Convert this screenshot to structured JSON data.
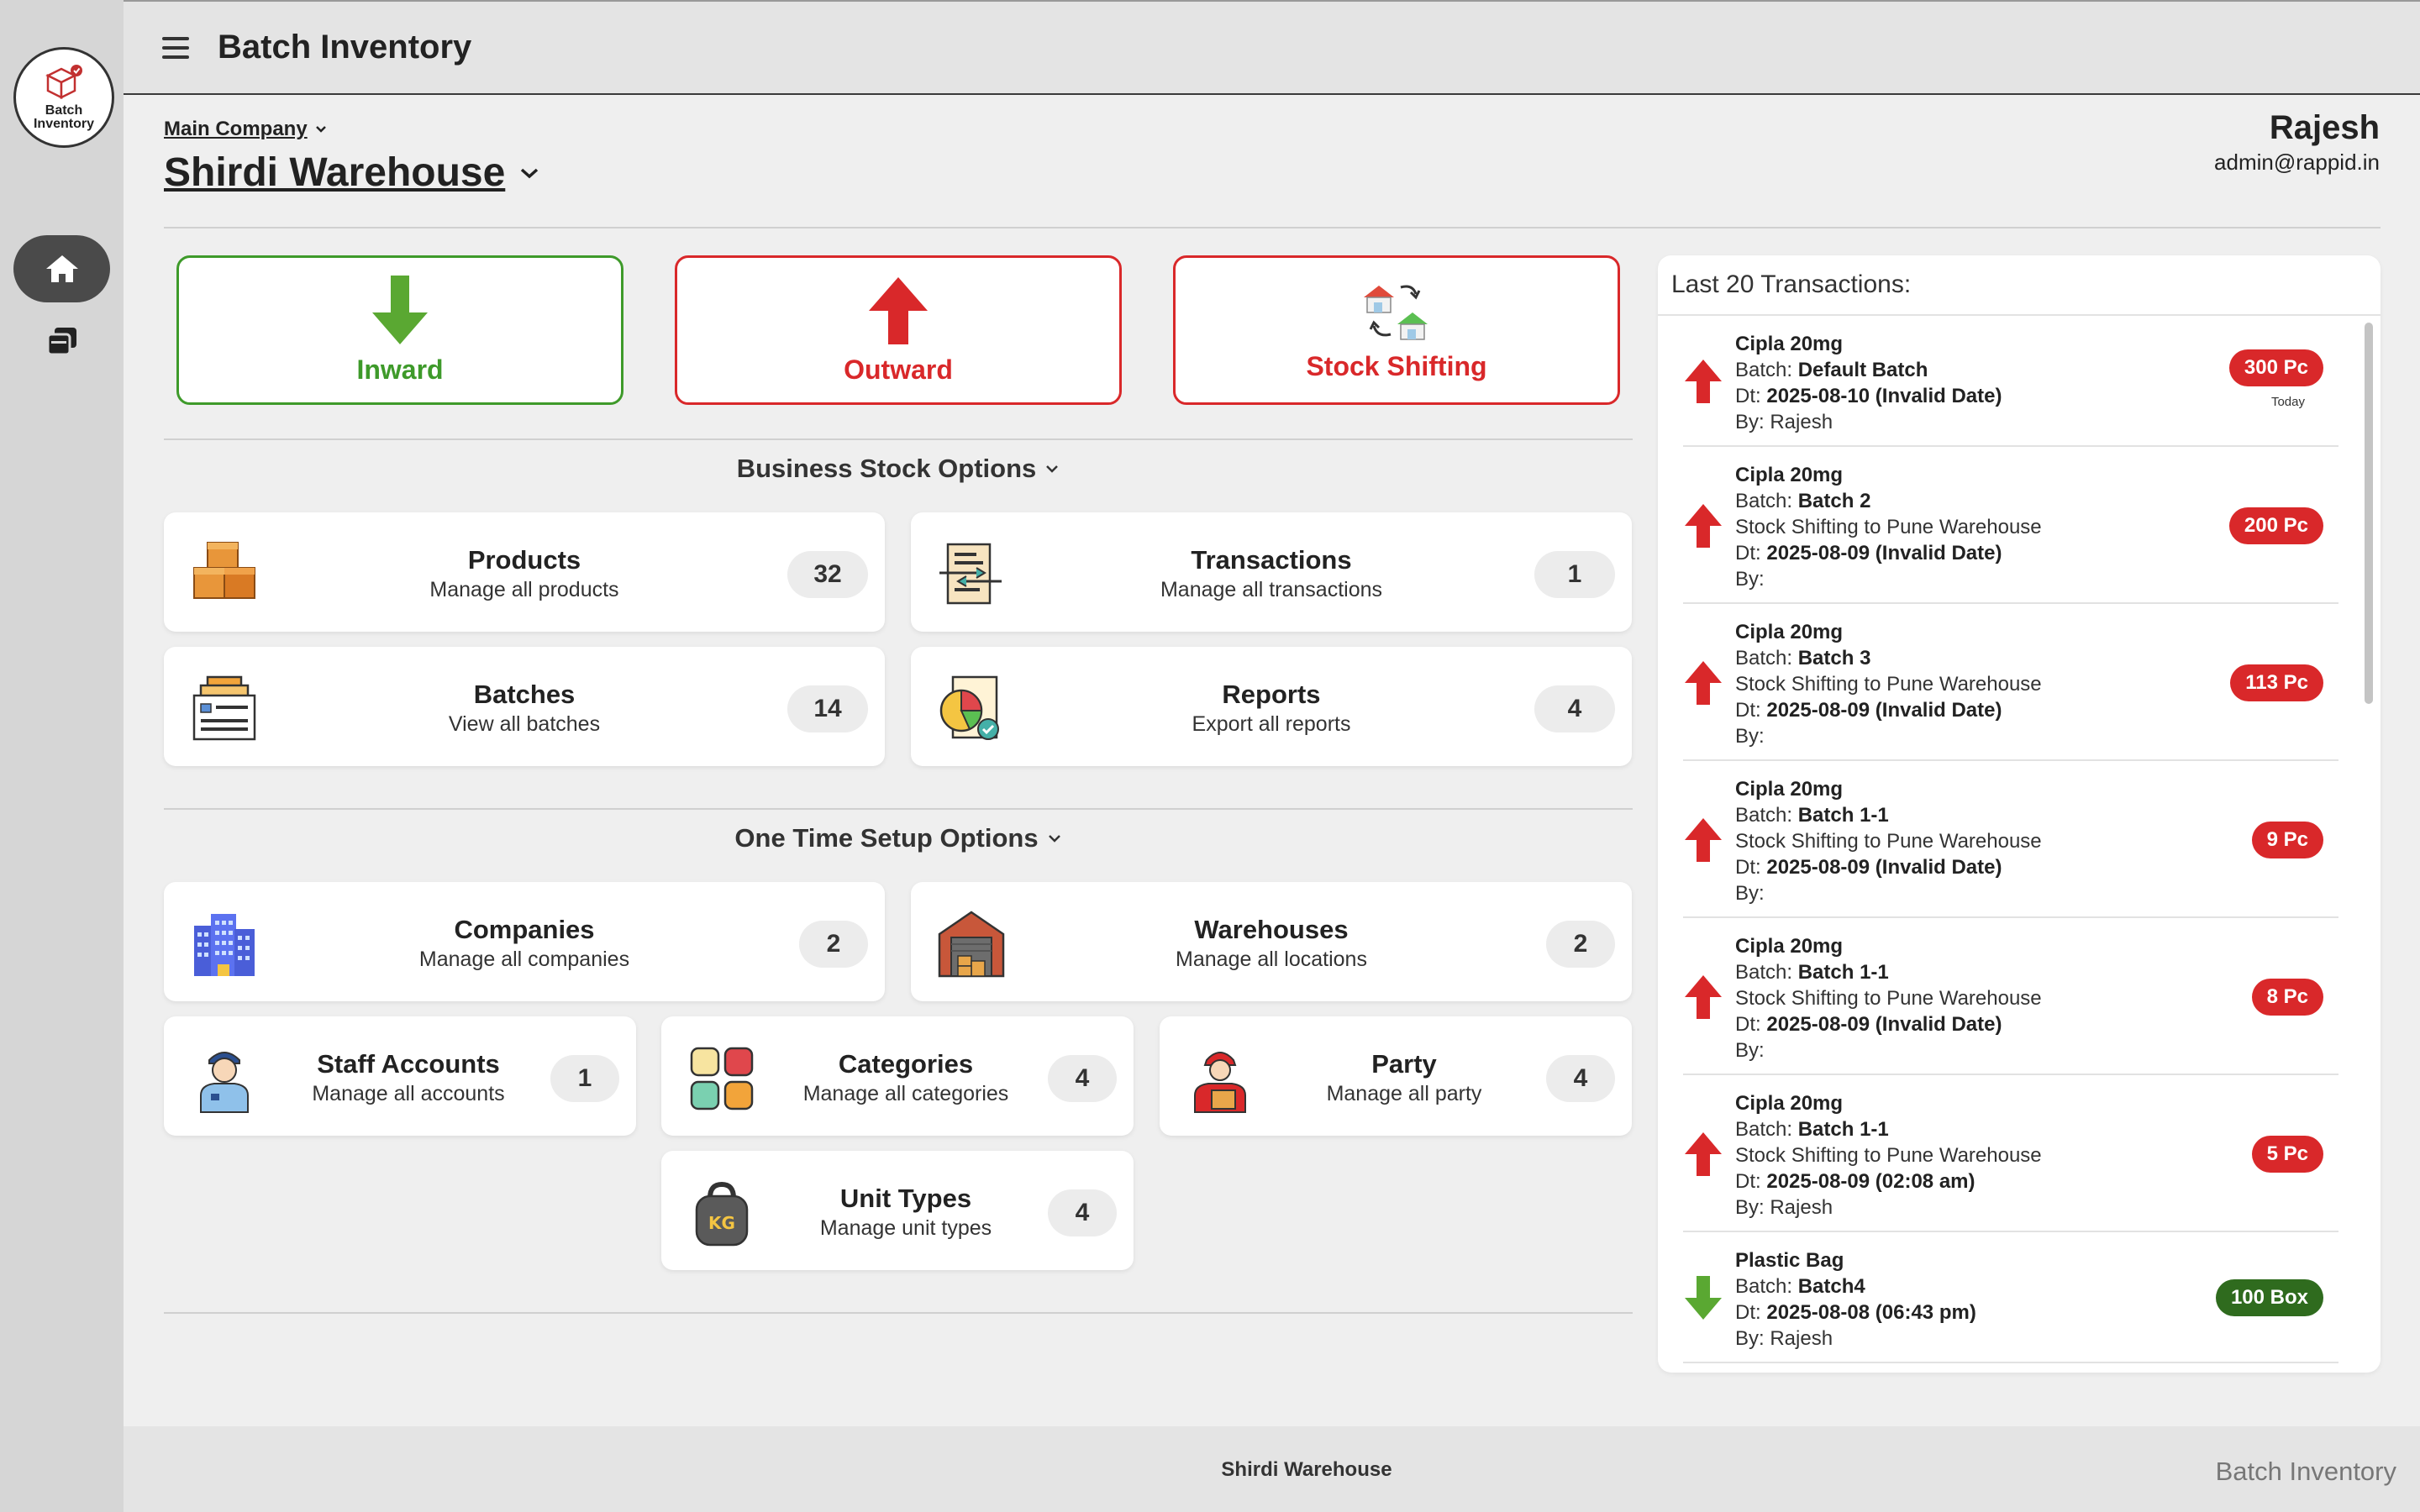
{
  "app": {
    "title": "Batch Inventory",
    "logo_line1": "Batch",
    "logo_line2": "Inventory"
  },
  "context": {
    "company": "Main Company",
    "warehouse": "Shirdi Warehouse"
  },
  "user": {
    "name": "Rajesh",
    "email": "admin@rappid.in"
  },
  "actions": {
    "inward": "Inward",
    "outward": "Outward",
    "stock_shifting": "Stock Shifting"
  },
  "sections": {
    "business": "Business Stock Options",
    "setup": "One Time Setup Options"
  },
  "business_cards": {
    "products": {
      "title": "Products",
      "subtitle": "Manage all products",
      "count": "32"
    },
    "transactions": {
      "title": "Transactions",
      "subtitle": "Manage all transactions",
      "count": "1"
    },
    "batches": {
      "title": "Batches",
      "subtitle": "View all batches",
      "count": "14"
    },
    "reports": {
      "title": "Reports",
      "subtitle": "Export all reports",
      "count": "4"
    }
  },
  "setup_cards": {
    "companies": {
      "title": "Companies",
      "subtitle": "Manage all companies",
      "count": "2"
    },
    "warehouses": {
      "title": "Warehouses",
      "subtitle": "Manage all locations",
      "count": "2"
    },
    "staff": {
      "title": "Staff Accounts",
      "subtitle": "Manage all accounts",
      "count": "1"
    },
    "categories": {
      "title": "Categories",
      "subtitle": "Manage all categories",
      "count": "4"
    },
    "party": {
      "title": "Party",
      "subtitle": "Manage all party",
      "count": "4"
    },
    "units": {
      "title": "Unit Types",
      "subtitle": "Manage unit types",
      "count": "4",
      "icon_text": "KG"
    }
  },
  "transactions": {
    "title": "Last 20 Transactions:",
    "labels": {
      "batch": "Batch: ",
      "dt": "Dt: ",
      "by": "By: "
    },
    "items": [
      {
        "direction": "up",
        "product": "Cipla 20mg",
        "batch": "Default Batch",
        "note": "",
        "date": "2025-08-10 (Invalid Date)",
        "by": "Rajesh",
        "qty": "300 Pc",
        "extra": "Today"
      },
      {
        "direction": "up",
        "product": "Cipla 20mg",
        "batch": "Batch 2",
        "note": "Stock Shifting to Pune Warehouse",
        "date": "2025-08-09 (Invalid Date)",
        "by": "",
        "qty": "200 Pc",
        "extra": ""
      },
      {
        "direction": "up",
        "product": "Cipla 20mg",
        "batch": "Batch 3",
        "note": "Stock Shifting to Pune Warehouse",
        "date": "2025-08-09 (Invalid Date)",
        "by": "",
        "qty": "113 Pc",
        "extra": ""
      },
      {
        "direction": "up",
        "product": "Cipla 20mg",
        "batch": "Batch 1-1",
        "note": "Stock Shifting to Pune Warehouse",
        "date": "2025-08-09 (Invalid Date)",
        "by": "",
        "qty": "9 Pc",
        "extra": ""
      },
      {
        "direction": "up",
        "product": "Cipla 20mg",
        "batch": "Batch 1-1",
        "note": "Stock Shifting to Pune Warehouse",
        "date": "2025-08-09 (Invalid Date)",
        "by": "",
        "qty": "8 Pc",
        "extra": ""
      },
      {
        "direction": "up",
        "product": "Cipla 20mg",
        "batch": "Batch 1-1",
        "note": "Stock Shifting to Pune Warehouse",
        "date": "2025-08-09 (02:08 am)",
        "by": "Rajesh",
        "qty": "5 Pc",
        "extra": ""
      },
      {
        "direction": "down",
        "product": "Plastic Bag",
        "batch": "Batch4",
        "note": "",
        "date": "2025-08-08 (06:43 pm)",
        "by": "Rajesh",
        "qty": "100 Box",
        "extra": ""
      }
    ]
  },
  "footer": {
    "center": "Shirdi Warehouse",
    "right": "Batch Inventory"
  },
  "colors": {
    "inward": "#3e9a2a",
    "outward": "#d9282a",
    "badge_green": "#2f6b1e"
  }
}
